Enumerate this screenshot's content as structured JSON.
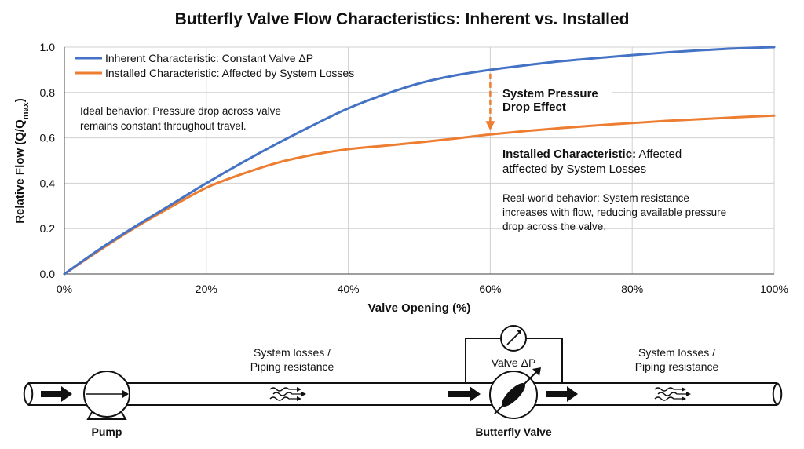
{
  "chart_data": {
    "type": "line",
    "title": "Butterfly Valve Flow Characteristics: Inherent vs. Installed",
    "xlabel": "Valve Opening (%)",
    "ylabel_main": "Relative Flow (Q/Q",
    "ylabel_sub": "max",
    "ylabel_close": ")",
    "xlim": [
      0,
      100
    ],
    "ylim": [
      0,
      1.0
    ],
    "x_ticks": [
      0,
      20,
      40,
      60,
      80,
      100
    ],
    "x_tick_labels": [
      "0%",
      "20%",
      "40%",
      "60%",
      "80%",
      "100%"
    ],
    "y_ticks": [
      0,
      0.2,
      0.4,
      0.6,
      0.8,
      1.0
    ],
    "y_tick_labels": [
      "0.0",
      "0.2",
      "0.4",
      "0.6",
      "0.8",
      "1.0"
    ],
    "grid": true,
    "legend_position": "top-left",
    "series": [
      {
        "name": "Inherent Characteristic: Constant Valve ΔP",
        "color": "#4472c4",
        "x": [
          0,
          5,
          10,
          15,
          20,
          25,
          30,
          35,
          40,
          45,
          50,
          55,
          60,
          65,
          70,
          75,
          80,
          85,
          90,
          95,
          100
        ],
        "y": [
          0,
          0.11,
          0.21,
          0.305,
          0.4,
          0.49,
          0.575,
          0.655,
          0.73,
          0.79,
          0.84,
          0.875,
          0.9,
          0.92,
          0.938,
          0.952,
          0.965,
          0.977,
          0.987,
          0.995,
          1.0
        ]
      },
      {
        "name": "Installed Characteristic: Affected by System Losses",
        "color": "#ed7d31",
        "x": [
          0,
          5,
          10,
          15,
          20,
          25,
          30,
          35,
          40,
          45,
          50,
          55,
          60,
          65,
          70,
          75,
          80,
          85,
          90,
          95,
          100
        ],
        "y": [
          0,
          0.105,
          0.205,
          0.295,
          0.38,
          0.44,
          0.49,
          0.525,
          0.55,
          0.565,
          0.58,
          0.597,
          0.615,
          0.63,
          0.643,
          0.655,
          0.665,
          0.675,
          0.683,
          0.691,
          0.698
        ]
      }
    ],
    "annotations": {
      "ideal_note": [
        "Ideal behavior: Pressure drop across valve",
        "remains constant throughout travel."
      ],
      "pressure_drop_label": [
        "System Pressure",
        "Drop Effect"
      ],
      "pressure_drop_x": 60,
      "installed_title_bold": "Installed Characteristic:",
      "installed_title_rest": " Affected",
      "installed_title_line2": "atffected by System Losses",
      "realworld_note": [
        "Real-world behavior: System resistance",
        "increases with flow, reducing available pressure",
        "drop across the valve."
      ]
    }
  },
  "diagram": {
    "pump_label": "Pump",
    "valve_label": "Butterfly Valve",
    "valve_dp_label": "Valve ΔP",
    "losses_left": [
      "System losses /",
      "Piping resistance"
    ],
    "losses_right": [
      "System losses /",
      "Piping resistance"
    ]
  },
  "colors": {
    "inherent": "#4472c4",
    "installed": "#ed7d31",
    "grid": "#d0d0d0",
    "text": "#111111"
  }
}
